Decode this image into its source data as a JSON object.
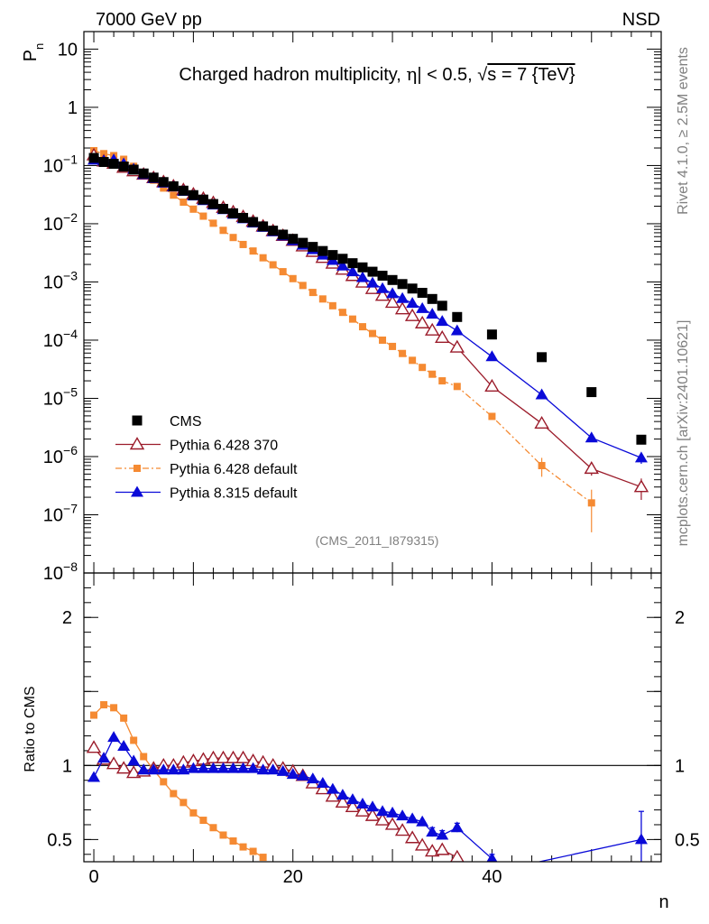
{
  "header": {
    "energy_label": "7000 GeV pp",
    "process_label": "NSD"
  },
  "side": {
    "rivet_label": "Rivet 4.1.0, ≥ 2.5M events",
    "mcplots_label": "mcplots.cern.ch [arXiv:2401.10621]"
  },
  "colors": {
    "cms": "#000000",
    "p6_370": "#9b1b2a",
    "p6_default": "#f58a32",
    "p8": "#0a0ad8"
  },
  "chart_data": [
    {
      "type": "scatter",
      "panel": "main",
      "title": "Charged hadron multiplicity, η| < 0.5, √s = 7 {TeV}",
      "title_parts": [
        "Charged hadron multiplicity, ",
        "η",
        "| < 0.5, ",
        "√",
        "s = 7 {TeV}"
      ],
      "ylabel": "P",
      "ylabel_sub": "n",
      "yscale": "log",
      "ylim": [
        1e-08,
        20
      ],
      "xlim": [
        -1,
        57
      ],
      "watermark": "(CMS_2011_I879315)",
      "ytick_labels": [
        {
          "value": 1e-08,
          "base": "10",
          "exp": "−8"
        },
        {
          "value": 1e-07,
          "base": "10",
          "exp": "−7"
        },
        {
          "value": 1e-06,
          "base": "10",
          "exp": "−6"
        },
        {
          "value": 1e-05,
          "base": "10",
          "exp": "−5"
        },
        {
          "value": 0.0001,
          "base": "10",
          "exp": "−4"
        },
        {
          "value": 0.001,
          "base": "10",
          "exp": "−3"
        },
        {
          "value": 0.01,
          "base": "10",
          "exp": "−2"
        },
        {
          "value": 0.1,
          "base": "10",
          "exp": "−1"
        },
        {
          "value": 1,
          "base": "1",
          "exp": ""
        },
        {
          "value": 10,
          "base": "10",
          "exp": ""
        }
      ],
      "legend": [
        {
          "label": "CMS",
          "key": "cms"
        },
        {
          "label": "Pythia 6.428 370",
          "key": "p6_370"
        },
        {
          "label": "Pythia 6.428 default",
          "key": "p6_default"
        },
        {
          "label": "Pythia 8.315 default",
          "key": "p8"
        }
      ],
      "series": {
        "cms": {
          "x": [
            0,
            1,
            2,
            3,
            4,
            5,
            6,
            7,
            8,
            9,
            10,
            11,
            12,
            13,
            14,
            15,
            16,
            17,
            18,
            19,
            20,
            21,
            22,
            23,
            24,
            25,
            26,
            27,
            28,
            29,
            30,
            31,
            32,
            33,
            34,
            35,
            36.5,
            40,
            45,
            50,
            55
          ],
          "y": [
            0.135,
            0.115,
            0.107,
            0.096,
            0.085,
            0.073,
            0.062,
            0.052,
            0.044,
            0.037,
            0.031,
            0.026,
            0.0218,
            0.018,
            0.0151,
            0.0126,
            0.0107,
            0.009,
            0.0076,
            0.0065,
            0.0055,
            0.0047,
            0.004,
            0.0034,
            0.0029,
            0.0025,
            0.0021,
            0.00178,
            0.0015,
            0.00128,
            0.00108,
            0.00092,
            0.00077,
            0.00065,
            0.00051,
            0.00039,
            0.00025,
            0.000125,
            5.1e-05,
            1.28e-05,
            1.95e-06
          ]
        },
        "p6_370": {
          "x": [
            0,
            1,
            2,
            3,
            4,
            5,
            6,
            7,
            8,
            9,
            10,
            11,
            12,
            13,
            14,
            15,
            16,
            17,
            18,
            19,
            20,
            21,
            22,
            23,
            24,
            25,
            26,
            27,
            28,
            29,
            30,
            31,
            32,
            33,
            34,
            35,
            36.5,
            40,
            45,
            50,
            55
          ],
          "y": [
            0.15,
            0.118,
            0.108,
            0.092,
            0.08,
            0.07,
            0.061,
            0.052,
            0.044,
            0.038,
            0.032,
            0.027,
            0.0228,
            0.0188,
            0.0158,
            0.0131,
            0.0109,
            0.009,
            0.0075,
            0.0062,
            0.0051,
            0.0041,
            0.0033,
            0.0026,
            0.00207,
            0.00163,
            0.00127,
            0.00098,
            0.00076,
            0.00058,
            0.00044,
            0.00034,
            0.00026,
            0.000195,
            0.000147,
            0.00011,
            7.5e-05,
            1.6e-05,
            3.7e-06,
            6.2e-07,
            3e-07
          ],
          "yerr": [
            0,
            0,
            0,
            0,
            0,
            0,
            0,
            0,
            0,
            0,
            0,
            0,
            0,
            0,
            0,
            0,
            0,
            0,
            0,
            0,
            0,
            0,
            0,
            0,
            0,
            0,
            0,
            0,
            0,
            0,
            0,
            0,
            0,
            0,
            0,
            0,
            0,
            0,
            0,
            1.5e-07,
            1.2e-07
          ]
        },
        "p6_default": {
          "x": [
            0,
            1,
            2,
            3,
            4,
            5,
            6,
            7,
            8,
            9,
            10,
            11,
            12,
            13,
            14,
            15,
            16,
            17,
            18,
            19,
            20,
            21,
            22,
            23,
            24,
            25,
            26,
            27,
            28,
            29,
            30,
            31,
            32,
            33,
            34,
            35,
            36.5,
            40,
            45,
            50
          ],
          "y": [
            0.18,
            0.16,
            0.148,
            0.128,
            0.097,
            0.075,
            0.056,
            0.041,
            0.031,
            0.0235,
            0.0178,
            0.0135,
            0.0102,
            0.0077,
            0.0058,
            0.0044,
            0.0034,
            0.0026,
            0.00197,
            0.0015,
            0.00114,
            0.00087,
            0.00066,
            0.00051,
            0.00039,
            0.0003,
            0.00023,
            0.00017,
            0.00013,
            0.0001,
            7.8e-05,
            5.9e-05,
            4.5e-05,
            3.4e-05,
            2.6e-05,
            2e-05,
            1.6e-05,
            4.9e-06,
            7e-07,
            1.6e-07
          ],
          "yerr": [
            0,
            0,
            0,
            0,
            0,
            0,
            0,
            0,
            0,
            0,
            0,
            0,
            0,
            0,
            0,
            0,
            0,
            0,
            0,
            0,
            0,
            0,
            0,
            0,
            0,
            0,
            0,
            0,
            0,
            0,
            0,
            0,
            0,
            0,
            0,
            0,
            0,
            0,
            2.5e-07,
            1.1e-07
          ]
        },
        "p8": {
          "x": [
            0,
            1,
            2,
            3,
            4,
            5,
            6,
            7,
            8,
            9,
            10,
            11,
            12,
            13,
            14,
            15,
            16,
            17,
            18,
            19,
            20,
            21,
            22,
            23,
            24,
            25,
            26,
            27,
            28,
            29,
            30,
            31,
            32,
            33,
            34,
            35,
            36.5,
            40,
            45,
            50,
            55
          ],
          "y": [
            0.124,
            0.12,
            0.125,
            0.107,
            0.087,
            0.07,
            0.06,
            0.05,
            0.043,
            0.036,
            0.03,
            0.025,
            0.021,
            0.0175,
            0.0146,
            0.0122,
            0.0103,
            0.0087,
            0.0073,
            0.0062,
            0.0051,
            0.0043,
            0.0036,
            0.0029,
            0.00235,
            0.00188,
            0.0015,
            0.00119,
            0.00096,
            0.00077,
            0.00063,
            0.00052,
            0.00043,
            0.00035,
            0.00028,
            0.00021,
            0.000145,
            5.2e-05,
            1.15e-05,
            2.1e-06,
            9.5e-07
          ],
          "yerr": [
            0,
            0,
            0,
            0,
            0,
            0,
            0,
            0,
            0,
            0,
            0,
            0,
            0,
            0,
            0,
            0,
            0,
            0,
            0,
            0,
            0,
            0,
            0,
            0,
            0,
            0,
            0,
            0,
            0,
            0,
            0,
            0,
            0,
            0,
            0,
            0,
            0,
            0,
            0,
            3e-07,
            2e-07
          ]
        }
      }
    },
    {
      "type": "scatter",
      "panel": "ratio",
      "ylabel": "Ratio to CMS",
      "xlabel": "n",
      "xlim": [
        -1,
        57
      ],
      "ylim": [
        0.35,
        2.3
      ],
      "xtick_labels": [
        {
          "value": 0,
          "label": "0"
        },
        {
          "value": 20,
          "label": "20"
        },
        {
          "value": 40,
          "label": "40"
        }
      ],
      "ytick_labels": [
        {
          "value": 0.5,
          "label": "0.5"
        },
        {
          "value": 1,
          "label": "1"
        },
        {
          "value": 2,
          "label": "2"
        }
      ],
      "series": {
        "p6_370": {
          "x": [
            0,
            1,
            2,
            3,
            4,
            5,
            6,
            7,
            8,
            9,
            10,
            11,
            12,
            13,
            14,
            15,
            16,
            17,
            18,
            19,
            20,
            21,
            22,
            23,
            24,
            25,
            26,
            27,
            28,
            29,
            30,
            31,
            32,
            33,
            34,
            35,
            36.5
          ],
          "y": [
            1.12,
            1.04,
            1.01,
            0.98,
            0.95,
            0.96,
            0.98,
            1.0,
            1.0,
            1.02,
            1.03,
            1.04,
            1.05,
            1.05,
            1.05,
            1.05,
            1.03,
            1.02,
            1.0,
            0.98,
            0.96,
            0.93,
            0.88,
            0.84,
            0.79,
            0.75,
            0.72,
            0.69,
            0.66,
            0.63,
            0.6,
            0.56,
            0.51,
            0.46,
            0.42,
            0.43,
            0.38
          ]
        },
        "p6_default": {
          "x": [
            0,
            1,
            2,
            3,
            4,
            5,
            6,
            7,
            8,
            9,
            10,
            11,
            12,
            13,
            14,
            15,
            16,
            17
          ],
          "y": [
            1.34,
            1.41,
            1.39,
            1.32,
            1.17,
            1.06,
            0.97,
            0.89,
            0.81,
            0.75,
            0.68,
            0.63,
            0.58,
            0.53,
            0.49,
            0.45,
            0.42,
            0.38
          ]
        },
        "p8": {
          "x": [
            0,
            1,
            2,
            3,
            4,
            5,
            6,
            7,
            8,
            9,
            10,
            11,
            12,
            13,
            14,
            15,
            16,
            17,
            18,
            19,
            20,
            21,
            22,
            23,
            24,
            25,
            26,
            27,
            28,
            29,
            30,
            31,
            32,
            33,
            34,
            35,
            36.5,
            40,
            55
          ],
          "y": [
            0.92,
            1.05,
            1.19,
            1.13,
            1.03,
            0.97,
            0.97,
            0.97,
            0.97,
            0.97,
            0.98,
            0.98,
            0.98,
            0.98,
            0.98,
            0.98,
            0.98,
            0.97,
            0.97,
            0.96,
            0.94,
            0.93,
            0.91,
            0.88,
            0.84,
            0.8,
            0.77,
            0.74,
            0.72,
            0.69,
            0.68,
            0.66,
            0.64,
            0.62,
            0.55,
            0.53,
            0.58,
            0.37,
            0.5
          ],
          "yerr": [
            0,
            0,
            0,
            0,
            0,
            0,
            0,
            0,
            0,
            0,
            0,
            0,
            0,
            0,
            0,
            0,
            0,
            0,
            0,
            0,
            0,
            0,
            0,
            0,
            0,
            0,
            0,
            0,
            0,
            0,
            0,
            0,
            0,
            0,
            0.03,
            0.03,
            0.03,
            0.03,
            0.19
          ]
        }
      }
    }
  ]
}
